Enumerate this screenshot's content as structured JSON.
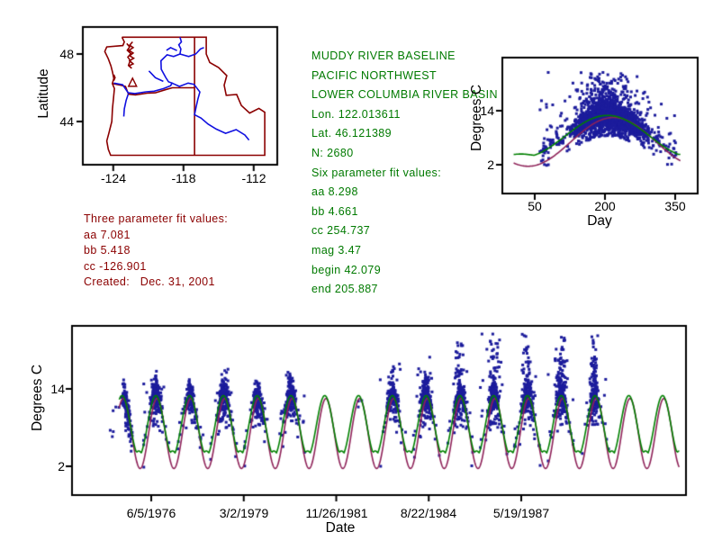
{
  "colors": {
    "background": "#FFFFFF",
    "border": "#8B0000",
    "river": "#1010E0",
    "point": "#1C1C9C",
    "fit_green": "#008000",
    "fit_purple": "#8E2158",
    "text_green": "#007A00",
    "text_red": "#8B0000",
    "axis": "#000000"
  },
  "green_info": {
    "lines": [
      "MUDDY RIVER BASELINE",
      "PACIFIC NORTHWEST",
      "LOWER COLUMBIA RIVER BASIN",
      "Lon. 122.013611",
      "Lat. 46.121389",
      "N: 2680",
      "Six parameter fit values:",
      "aa 8.298",
      "bb 4.661",
      "cc 254.737",
      "mag 3.47",
      "begin 42.079",
      "end 205.887"
    ]
  },
  "red_info": {
    "lines": [
      "Three parameter fit values:",
      "aa 7.081",
      "bb 5.418",
      "cc -126.901",
      "Created:   Dec. 31, 2001"
    ]
  },
  "chart_data": [
    {
      "name": "site_map",
      "type": "map",
      "ylabel": "Latitude",
      "yticks": [
        48,
        44
      ],
      "xticks": [
        -124,
        -118,
        -112
      ],
      "lon_range": [
        -126.6,
        -110.0
      ],
      "lat_range": [
        41.4,
        49.6
      ],
      "marker": {
        "shape": "triangle",
        "lon": -122.35,
        "lat": 46.3
      },
      "borders": [
        [
          [
            -123.25,
            49.0
          ],
          [
            -123.05,
            48.72
          ],
          [
            -123.18,
            48.5
          ],
          [
            -124.55,
            48.42
          ],
          [
            -124.72,
            48.15
          ],
          [
            -124.42,
            47.72
          ],
          [
            -124.2,
            47.3
          ],
          [
            -124.05,
            46.9
          ],
          [
            -123.95,
            46.55
          ],
          [
            -124.08,
            46.25
          ],
          [
            -123.9,
            45.95
          ],
          [
            -123.97,
            45.45
          ],
          [
            -124.07,
            44.75
          ],
          [
            -124.12,
            44.0
          ],
          [
            -124.38,
            43.3
          ],
          [
            -124.55,
            42.85
          ],
          [
            -124.42,
            42.35
          ],
          [
            -124.22,
            42.0
          ],
          [
            -111.05,
            42.0
          ],
          [
            -111.05,
            44.55
          ],
          [
            -111.55,
            44.78
          ],
          [
            -112.35,
            44.5
          ],
          [
            -113.05,
            44.95
          ],
          [
            -113.45,
            45.6
          ],
          [
            -114.35,
            45.55
          ],
          [
            -114.52,
            46.15
          ],
          [
            -114.3,
            46.72
          ],
          [
            -115.0,
            47.2
          ],
          [
            -115.75,
            47.5
          ],
          [
            -116.05,
            48.0
          ],
          [
            -116.05,
            49.0
          ],
          [
            -123.25,
            49.0
          ]
        ],
        [
          [
            -124.08,
            46.25
          ],
          [
            -123.35,
            46.15
          ],
          [
            -122.95,
            46.08
          ],
          [
            -122.7,
            45.62
          ],
          [
            -122.1,
            45.58
          ],
          [
            -121.1,
            45.68
          ],
          [
            -120.4,
            45.7
          ],
          [
            -119.55,
            45.88
          ],
          [
            -118.95,
            46.0
          ],
          [
            -117.05,
            46.0
          ]
        ],
        [
          [
            -117.05,
            49.0
          ],
          [
            -117.05,
            42.0
          ]
        ],
        [
          [
            -122.35,
            48.72
          ],
          [
            -122.6,
            48.52
          ],
          [
            -122.3,
            48.38
          ],
          [
            -122.65,
            48.22
          ],
          [
            -122.3,
            48.06
          ],
          [
            -122.6,
            47.9
          ],
          [
            -122.25,
            47.75
          ],
          [
            -122.6,
            47.6
          ],
          [
            -122.3,
            47.42
          ],
          [
            -122.65,
            47.3
          ],
          [
            -122.42,
            47.15
          ],
          [
            -122.7,
            47.32
          ],
          [
            -122.55,
            47.62
          ],
          [
            -122.75,
            47.82
          ],
          [
            -122.5,
            48.02
          ],
          [
            -122.8,
            48.22
          ],
          [
            -122.6,
            48.42
          ],
          [
            -122.85,
            48.62
          ]
        ],
        [
          [
            -123.95,
            46.78
          ],
          [
            -123.85,
            46.6
          ],
          [
            -123.95,
            46.42
          ]
        ]
      ],
      "rivers": [
        [
          [
            -118.3,
            49.0
          ],
          [
            -118.18,
            48.72
          ],
          [
            -118.4,
            48.55
          ],
          [
            -118.22,
            48.3
          ],
          [
            -118.3,
            48.0
          ],
          [
            -118.85,
            47.85
          ],
          [
            -119.4,
            47.95
          ],
          [
            -119.92,
            47.6
          ],
          [
            -119.9,
            47.1
          ],
          [
            -119.52,
            46.62
          ],
          [
            -119.28,
            46.35
          ],
          [
            -118.98,
            46.28
          ],
          [
            -119.1,
            46.12
          ],
          [
            -119.7,
            45.95
          ],
          [
            -120.5,
            45.8
          ],
          [
            -121.2,
            45.76
          ],
          [
            -122.15,
            45.66
          ],
          [
            -122.72,
            45.7
          ],
          [
            -123.2,
            46.18
          ],
          [
            -123.95,
            46.28
          ]
        ],
        [
          [
            -118.3,
            48.0
          ],
          [
            -117.55,
            47.85
          ],
          [
            -116.95,
            48.0
          ],
          [
            -116.55,
            48.3
          ],
          [
            -116.25,
            48.38
          ]
        ],
        [
          [
            -118.55,
            48.2
          ],
          [
            -119.1,
            48.38
          ],
          [
            -119.45,
            48.22
          ]
        ],
        [
          [
            -120.95,
            47.0
          ],
          [
            -120.4,
            46.6
          ],
          [
            -119.72,
            46.38
          ]
        ],
        [
          [
            -118.98,
            46.28
          ],
          [
            -118.35,
            46.08
          ],
          [
            -117.6,
            46.28
          ],
          [
            -117.1,
            46.2
          ],
          [
            -116.6,
            45.75
          ],
          [
            -116.78,
            45.3
          ],
          [
            -116.92,
            44.85
          ],
          [
            -117.05,
            44.4
          ],
          [
            -116.5,
            44.2
          ],
          [
            -115.9,
            43.85
          ],
          [
            -115.2,
            43.55
          ],
          [
            -114.4,
            43.3
          ],
          [
            -113.5,
            43.52
          ],
          [
            -112.75,
            43.2
          ],
          [
            -112.4,
            42.9
          ]
        ],
        [
          [
            -122.72,
            45.62
          ],
          [
            -122.9,
            45.25
          ],
          [
            -123.05,
            44.75
          ],
          [
            -123.1,
            44.3
          ]
        ]
      ]
    },
    {
      "name": "day_of_year_scatter",
      "type": "scatter",
      "xlabel": "Day",
      "ylabel": "Degrees C",
      "xticks": [
        50,
        200,
        350
      ],
      "yticks": [
        14,
        2
      ],
      "xlim": [
        -20,
        400
      ],
      "ylim": [
        -4.4,
        26
      ],
      "n_points": 2680,
      "fits": {
        "three": {
          "aa": 7.081,
          "bb": 5.418,
          "cc": -126.901,
          "color_key": "fit_purple"
        },
        "six": {
          "aa": 8.298,
          "bb": 4.661,
          "cc": 254.737,
          "mag": 3.47,
          "begin": 42.079,
          "end": 205.887,
          "color_key": "fit_green"
        }
      }
    },
    {
      "name": "time_series_scatter",
      "type": "scatter",
      "xlabel": "Date",
      "ylabel": "Degrees C",
      "xticks": [
        "6/5/1976",
        "3/2/1979",
        "11/26/1981",
        "8/22/1984",
        "5/19/1987"
      ],
      "yticks": [
        14,
        2
      ],
      "ylim": [
        -2.5,
        23.8
      ],
      "epoch": "1975-01-01",
      "years": [
        {
          "year": 1975,
          "n": 150,
          "top": 9.5,
          "dayc": 255,
          "daysp": 25
        },
        {
          "year": 1976,
          "n": 200,
          "top": 15.0,
          "dayc": 205,
          "daysp": 32
        },
        {
          "year": 1977,
          "n": 160,
          "top": 9.5,
          "dayc": 215,
          "daysp": 30
        },
        {
          "year": 1978,
          "n": 230,
          "top": 16.0,
          "dayc": 205,
          "daysp": 30
        },
        {
          "year": 1979,
          "n": 185,
          "top": 11.5,
          "dayc": 210,
          "daysp": 30
        },
        {
          "year": 1980,
          "n": 200,
          "top": 15.5,
          "dayc": 200,
          "daysp": 35
        },
        {
          "year": 1982,
          "n": 3,
          "top": 14.5,
          "dayc": 200,
          "daysp": 20
        },
        {
          "year": 1983,
          "n": 190,
          "top": 16.0,
          "dayc": 210,
          "daysp": 30
        },
        {
          "year": 1984,
          "n": 215,
          "top": 17.0,
          "dayc": 205,
          "daysp": 32
        },
        {
          "year": 1985,
          "n": 235,
          "top": 21.0,
          "dayc": 205,
          "daysp": 30
        },
        {
          "year": 1986,
          "n": 240,
          "top": 21.5,
          "dayc": 210,
          "daysp": 30
        },
        {
          "year": 1987,
          "n": 235,
          "top": 21.0,
          "dayc": 205,
          "daysp": 32
        },
        {
          "year": 1988,
          "n": 242,
          "top": 22.0,
          "dayc": 205,
          "daysp": 30
        },
        {
          "year": 1989,
          "n": 195,
          "top": 21.5,
          "dayc": 200,
          "daysp": 28
        }
      ]
    }
  ]
}
